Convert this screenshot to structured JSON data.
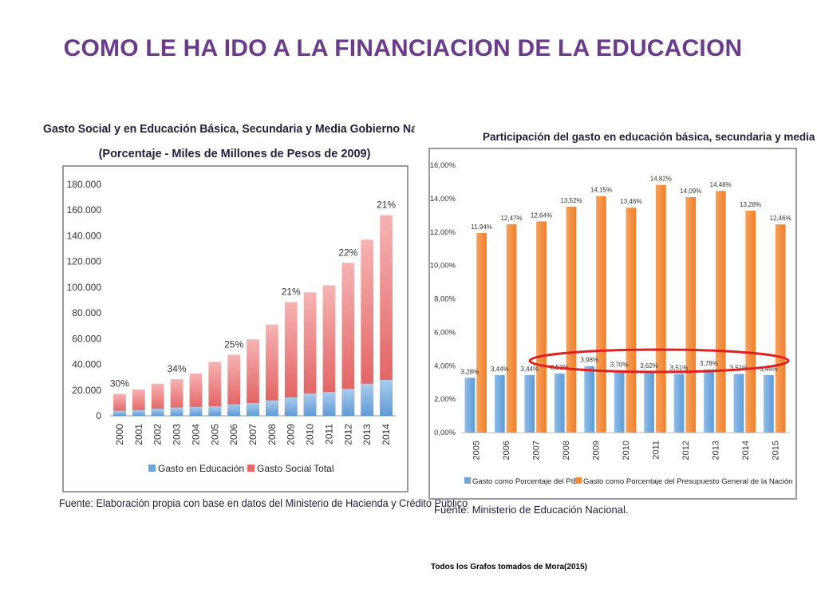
{
  "slide": {
    "title": "COMO LE HA IDO A LA FINANCIACION DE LA EDUCACION",
    "footnote": "Todos los Grafos tomados de Mora(2015)"
  },
  "colors": {
    "title": "#6b3a8c",
    "blue": "#6fa7dc",
    "red": "#e46b6b",
    "orange": "#f28b3a",
    "highlight_ellipse": "#e02020"
  },
  "chart_data": [
    {
      "type": "bar",
      "title": "Gasto Social y en Educación Básica, Secundaria y Media Gobierno Nacional Central",
      "subtitle": "(Porcentaje - Miles de Millones de Pesos de 2009)",
      "source": "Fuente: Elaboración propia con base en datos del Ministerio de Hacienda y Crédito Público",
      "categories": [
        "2000",
        "2001",
        "2002",
        "2003",
        "2004",
        "2005",
        "2006",
        "2007",
        "2008",
        "2009",
        "2010",
        "2011",
        "2012",
        "2013",
        "2014"
      ],
      "series": [
        {
          "name": "Gasto en Educación",
          "color": "#6fa7dc",
          "values": [
            4000,
            4500,
            5500,
            6500,
            7000,
            7500,
            9000,
            10000,
            12000,
            14500,
            17500,
            18500,
            21000,
            25000,
            28000
          ]
        },
        {
          "name": "Gasto Social Total",
          "color": "#e46b6b",
          "values": [
            17000,
            20500,
            25000,
            28500,
            33000,
            42000,
            47500,
            59500,
            71000,
            88500,
            96000,
            101500,
            119000,
            137000,
            156000
          ]
        }
      ],
      "annotations": [
        {
          "category": "2000",
          "text": "30%"
        },
        {
          "category": "2003",
          "text": "34%"
        },
        {
          "category": "2006",
          "text": "25%"
        },
        {
          "category": "2009",
          "text": "21%"
        },
        {
          "category": "2012",
          "text": "22%"
        },
        {
          "category": "2014",
          "text": "21%"
        }
      ],
      "yticks": [
        "0",
        "20.000",
        "40.000",
        "60.000",
        "80.000",
        "100.000",
        "120.000",
        "140.000",
        "160.000",
        "180.000"
      ],
      "ylim": [
        0,
        180000
      ],
      "legend_position": "bottom",
      "grid": false
    },
    {
      "type": "bar",
      "title": "Participación del gasto en educación básica, secundaria y media",
      "source": "Fuente: Ministerio de Educación Nacional.",
      "categories": [
        "2005",
        "2006",
        "2007",
        "2008",
        "2009",
        "2010",
        "2011",
        "2012",
        "2013",
        "2014",
        "2015"
      ],
      "series": [
        {
          "name": "Gasto como Porcentaje del PIB",
          "color": "#6fa7dc",
          "values": [
            3.28,
            3.44,
            3.44,
            3.53,
            3.98,
            3.7,
            3.62,
            3.51,
            3.78,
            3.51,
            3.44
          ],
          "labels": [
            "3,28%",
            "3,44%",
            "3,44%",
            "3,53%",
            "3,98%",
            "3,70%",
            "3,62%",
            "3,51%",
            "3,78%",
            "3,51%",
            "3,44%"
          ]
        },
        {
          "name": "Gasto como Porcentaje del Presupuesto General de la Nación",
          "color": "#f28b3a",
          "values": [
            11.94,
            12.47,
            12.64,
            13.52,
            14.15,
            13.46,
            14.82,
            14.09,
            14.46,
            13.28,
            12.46
          ],
          "labels": [
            "11,94%",
            "12,47%",
            "12,64%",
            "13,52%",
            "14,15%",
            "13,46%",
            "14,82%",
            "14,09%",
            "14,46%",
            "13,28%",
            "12,46%"
          ]
        }
      ],
      "yticks": [
        "0,00%",
        "2,00%",
        "4,00%",
        "6,00%",
        "8,00%",
        "10,00%",
        "12,00%",
        "14,00%",
        "16,00%"
      ],
      "ylim": [
        0,
        16
      ],
      "legend_position": "bottom",
      "grid": false
    }
  ]
}
